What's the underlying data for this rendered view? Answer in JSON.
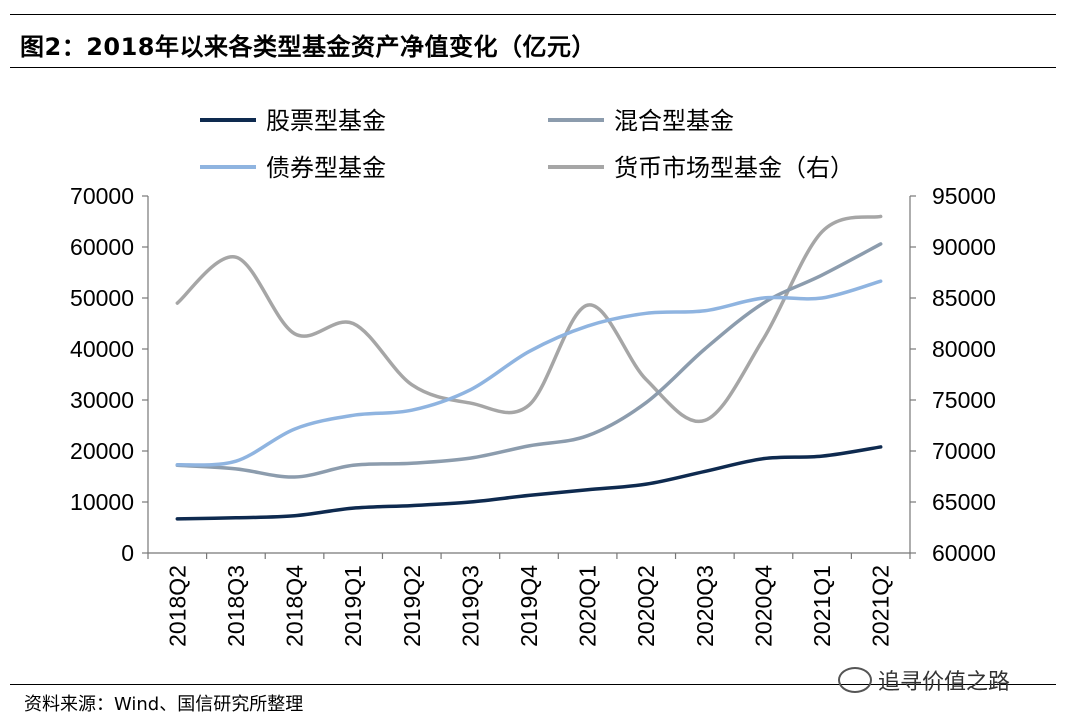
{
  "title": "图2：2018年以来各类型基金资产净值变化（亿元）",
  "source": "资料来源：Wind、国信研究所整理",
  "watermark": "追寻价值之路",
  "chart_data": {
    "type": "line",
    "categories": [
      "2018Q2",
      "2018Q3",
      "2018Q4",
      "2019Q1",
      "2019Q2",
      "2019Q3",
      "2019Q4",
      "2020Q1",
      "2020Q2",
      "2020Q3",
      "2020Q4",
      "2021Q1",
      "2021Q2"
    ],
    "ylim": [
      0,
      70000
    ],
    "y_ticks": [
      0,
      10000,
      20000,
      30000,
      40000,
      50000,
      60000,
      70000
    ],
    "y2lim": [
      60000,
      95000
    ],
    "y2_ticks": [
      60000,
      65000,
      70000,
      75000,
      80000,
      85000,
      90000,
      95000
    ],
    "legend_position": "top",
    "grid": false,
    "series": [
      {
        "name": "股票型基金",
        "axis": "left",
        "color": "#0e2a4f",
        "values": [
          6700,
          6900,
          7300,
          8800,
          9300,
          10000,
          11300,
          12400,
          13500,
          16000,
          18500,
          19000,
          20800
        ]
      },
      {
        "name": "混合型基金",
        "axis": "left",
        "color": "#8c9cad",
        "values": [
          17200,
          16500,
          14900,
          17200,
          17600,
          18600,
          21000,
          23000,
          29500,
          40000,
          49000,
          54500,
          60600
        ]
      },
      {
        "name": "债券型基金",
        "axis": "left",
        "color": "#8fb4e0",
        "values": [
          17300,
          18000,
          24300,
          27000,
          28000,
          32000,
          39500,
          44500,
          47000,
          47500,
          50000,
          50000,
          53300
        ]
      },
      {
        "name": "货币市场型基金（右）",
        "axis": "right",
        "color": "#a6a6a6",
        "values": [
          84500,
          89000,
          81500,
          82500,
          76500,
          74700,
          74500,
          84300,
          77000,
          73000,
          81000,
          91500,
          93000
        ]
      }
    ]
  }
}
